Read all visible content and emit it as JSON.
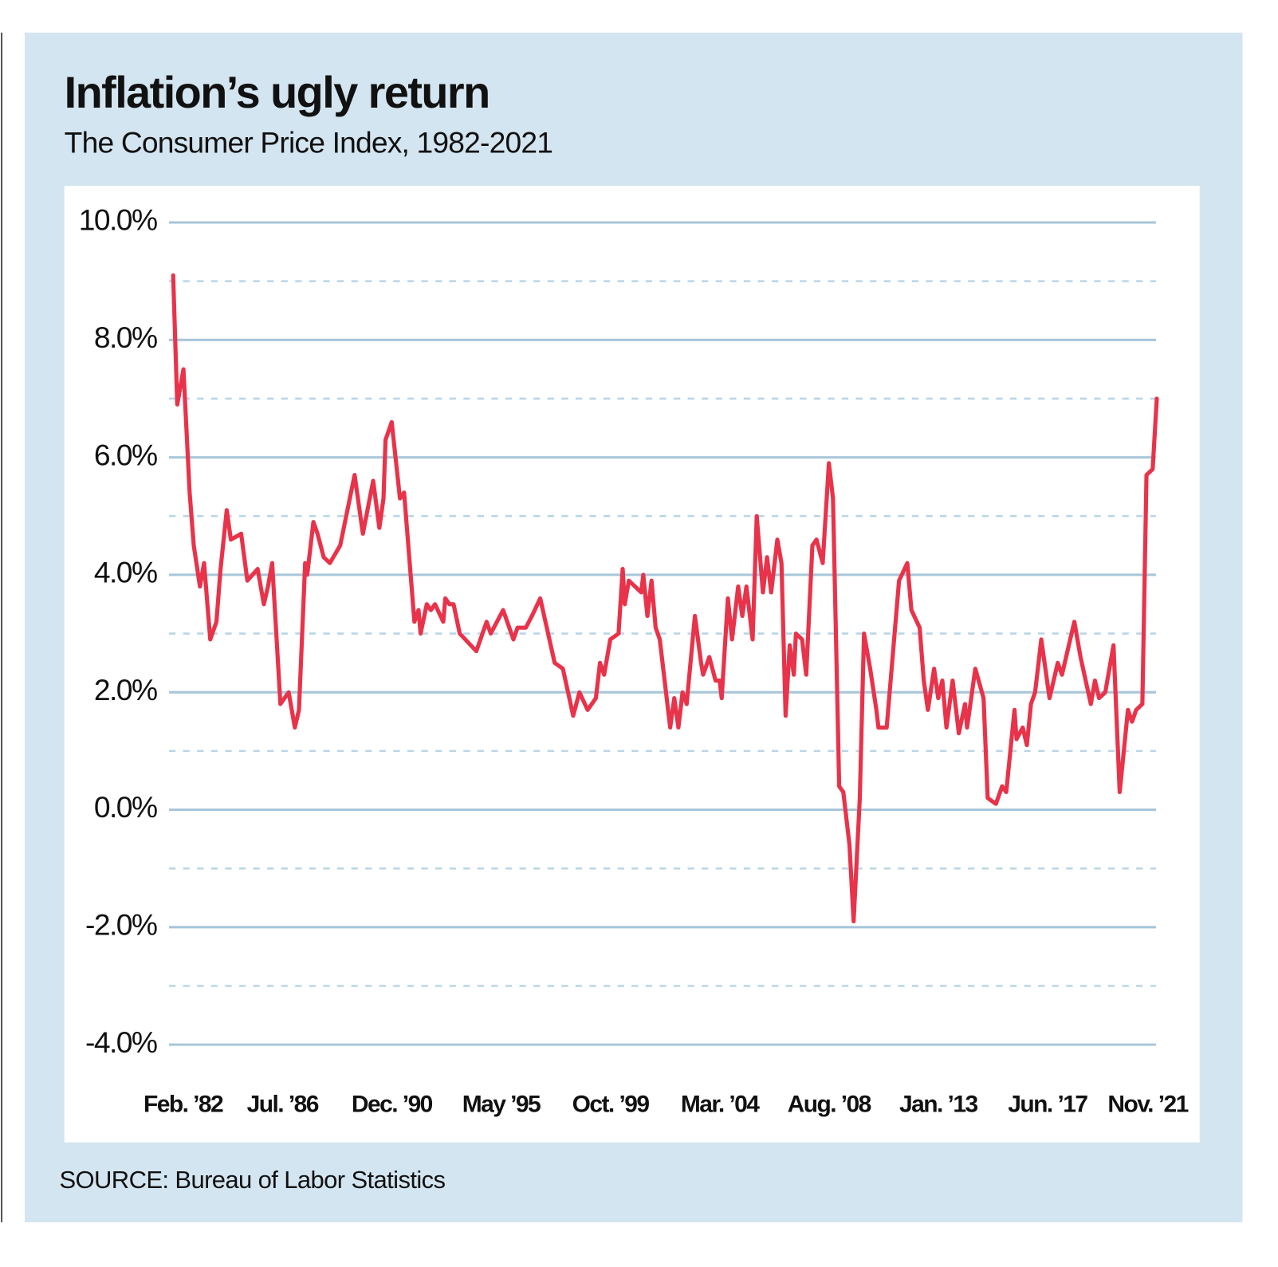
{
  "chart_data": {
    "type": "line",
    "title": "Inflation’s ugly return",
    "subtitle": "The Consumer Price Index, 1982-2021",
    "source": "SOURCE: Bureau of Labor Statistics",
    "color": "#e8334a",
    "grid": true,
    "minor_grid": [
      9,
      7,
      5,
      3,
      1,
      -1,
      -3
    ],
    "ylim": [
      -4,
      10
    ],
    "yticks": [
      {
        "value": 10,
        "label": "10.0%"
      },
      {
        "value": 8,
        "label": "8.0%"
      },
      {
        "value": 6,
        "label": "6.0%"
      },
      {
        "value": 4,
        "label": "4.0%"
      },
      {
        "value": 2,
        "label": "2.0%"
      },
      {
        "value": 0,
        "label": "0.0%"
      },
      {
        "value": -2,
        "label": "-2.0%"
      },
      {
        "value": -4,
        "label": "-4.0%"
      }
    ],
    "xlim": [
      "1982-02",
      "2021-11"
    ],
    "xticks": [
      {
        "value": "1982-02",
        "label": "Feb. ’82"
      },
      {
        "value": "1986-07",
        "label": "Jul. ’86"
      },
      {
        "value": "1990-12",
        "label": "Dec. ’90"
      },
      {
        "value": "1995-05",
        "label": "May ’95"
      },
      {
        "value": "1999-10",
        "label": "Oct. ’99"
      },
      {
        "value": "2004-03",
        "label": "Mar. ’04"
      },
      {
        "value": "2008-08",
        "label": "Aug. ’08"
      },
      {
        "value": "2013-01",
        "label": "Jan. ’13"
      },
      {
        "value": "2017-06",
        "label": "Jun. ’17"
      },
      {
        "value": "2021-11",
        "label": "Nov. ’21"
      }
    ],
    "x": [
      "1982-02",
      "1982-04",
      "1982-07",
      "1982-10",
      "1982-12",
      "1983-03",
      "1983-05",
      "1983-08",
      "1983-11",
      "1984-01",
      "1984-04",
      "1984-06",
      "1984-11",
      "1985-02",
      "1985-07",
      "1985-10",
      "1985-12",
      "1986-02",
      "1986-06",
      "1986-10",
      "1987-01",
      "1987-03",
      "1987-06",
      "1987-07",
      "1987-10",
      "1987-12",
      "1988-03",
      "1988-06",
      "1988-11",
      "1989-06",
      "1989-10",
      "1990-03",
      "1990-06",
      "1990-08",
      "1990-09",
      "1990-12",
      "1991-04",
      "1991-06",
      "1991-11",
      "1992-01",
      "1992-02",
      "1992-05",
      "1992-07",
      "1992-09",
      "1993-01",
      "1993-02",
      "1993-04",
      "1993-06",
      "1993-09",
      "1994-05",
      "1994-10",
      "1994-12",
      "1995-06",
      "1995-11",
      "1996-01",
      "1996-05",
      "1996-08",
      "1996-12",
      "1997-07",
      "1997-11",
      "1998-04",
      "1998-07",
      "1998-11",
      "1999-03",
      "1999-05",
      "1999-07",
      "1999-10",
      "2000-02",
      "2000-04",
      "2000-05",
      "2000-07",
      "2000-10",
      "2001-01",
      "2001-02",
      "2001-04",
      "2001-06",
      "2001-08",
      "2001-10",
      "2002-03",
      "2002-05",
      "2002-07",
      "2002-09",
      "2002-11",
      "2003-03",
      "2003-06",
      "2003-07",
      "2003-10",
      "2004-01",
      "2004-03",
      "2004-04",
      "2004-07",
      "2004-09",
      "2004-12",
      "2005-02",
      "2005-04",
      "2005-07",
      "2005-09",
      "2005-12",
      "2006-02",
      "2006-04",
      "2006-07",
      "2006-09",
      "2006-11",
      "2007-01",
      "2007-03",
      "2007-04",
      "2007-07",
      "2007-09",
      "2007-12",
      "2008-02",
      "2008-05",
      "2008-08",
      "2008-10",
      "2009-01",
      "2009-03",
      "2009-06",
      "2009-08",
      "2009-11",
      "2010-01",
      "2010-04",
      "2010-07",
      "2010-08",
      "2010-12",
      "2011-06",
      "2011-10",
      "2011-12",
      "2012-04",
      "2012-06",
      "2012-08",
      "2012-11",
      "2013-01",
      "2013-03",
      "2013-05",
      "2013-08",
      "2013-11",
      "2014-02",
      "2014-03",
      "2014-07",
      "2014-11",
      "2015-01",
      "2015-05",
      "2015-08",
      "2015-10",
      "2016-02",
      "2016-03",
      "2016-06",
      "2016-08",
      "2016-10",
      "2016-12",
      "2017-03",
      "2017-07",
      "2017-11",
      "2018-01",
      "2018-07",
      "2018-10",
      "2019-03",
      "2019-05",
      "2019-07",
      "2019-10",
      "2020-02",
      "2020-05",
      "2020-09",
      "2020-11",
      "2021-01",
      "2021-04",
      "2021-06",
      "2021-09",
      "2021-11"
    ],
    "values": [
      9.1,
      6.9,
      7.5,
      5.4,
      4.5,
      3.8,
      4.2,
      2.9,
      3.2,
      4.1,
      5.1,
      4.6,
      4.7,
      3.9,
      4.1,
      3.5,
      3.8,
      4.2,
      1.8,
      2.0,
      1.4,
      1.7,
      4.2,
      4.0,
      4.9,
      4.7,
      4.3,
      4.2,
      4.5,
      5.7,
      4.7,
      5.6,
      4.8,
      5.3,
      6.3,
      6.6,
      5.3,
      5.4,
      3.2,
      3.4,
      3.0,
      3.5,
      3.4,
      3.5,
      3.2,
      3.6,
      3.5,
      3.5,
      3.0,
      2.7,
      3.2,
      3.0,
      3.4,
      2.9,
      3.1,
      3.1,
      3.3,
      3.6,
      2.5,
      2.4,
      1.6,
      2.0,
      1.7,
      1.9,
      2.5,
      2.3,
      2.9,
      3.0,
      4.1,
      3.5,
      3.9,
      3.8,
      3.7,
      4.0,
      3.3,
      3.9,
      3.1,
      2.9,
      1.4,
      1.9,
      1.4,
      2.0,
      1.8,
      3.3,
      2.5,
      2.3,
      2.6,
      2.2,
      2.2,
      1.9,
      3.6,
      2.9,
      3.8,
      3.3,
      3.8,
      2.9,
      5.0,
      3.7,
      4.3,
      3.7,
      4.6,
      4.2,
      1.6,
      2.8,
      2.3,
      3.0,
      2.9,
      2.3,
      4.5,
      4.6,
      4.2,
      5.9,
      5.3,
      0.4,
      0.3,
      -0.6,
      -1.9,
      0.2,
      3.0,
      2.4,
      1.7,
      1.4,
      1.4,
      3.9,
      4.2,
      3.4,
      3.1,
      2.2,
      1.7,
      2.4,
      1.9,
      2.2,
      1.4,
      2.2,
      1.3,
      1.8,
      1.4,
      2.4,
      1.9,
      0.2,
      0.1,
      0.4,
      0.3,
      1.7,
      1.2,
      1.4,
      1.1,
      1.8,
      2.0,
      2.9,
      1.9,
      2.5,
      2.3,
      3.2,
      2.6,
      1.8,
      2.2,
      1.9,
      2.0,
      2.8,
      0.3,
      1.7,
      1.5,
      1.7,
      1.8,
      5.7,
      5.8,
      7.0
    ]
  }
}
